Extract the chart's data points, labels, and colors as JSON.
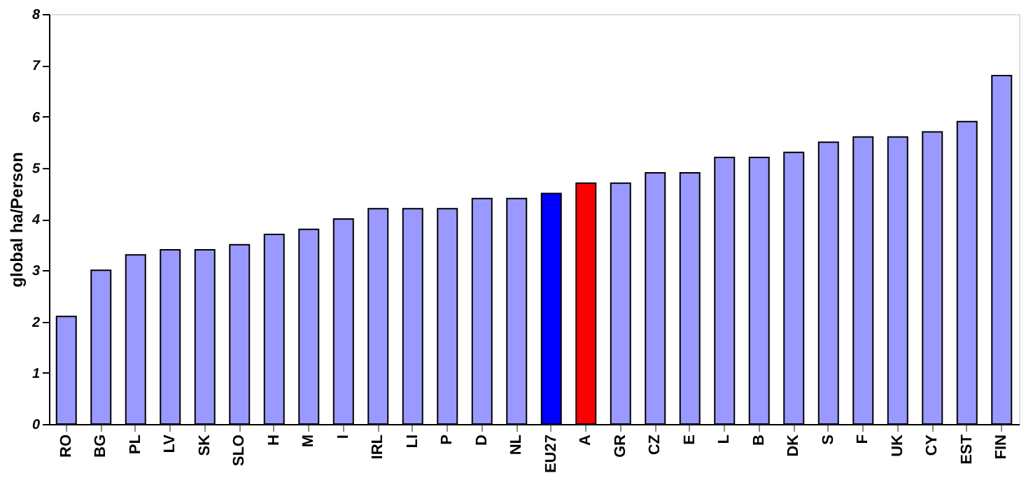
{
  "chart_data": {
    "type": "bar",
    "ylabel": "global ha/Person",
    "categories": [
      "RO",
      "BG",
      "PL",
      "LV",
      "SK",
      "SLO",
      "H",
      "M",
      "I",
      "IRL",
      "LI",
      "P",
      "D",
      "NL",
      "EU27",
      "A",
      "GR",
      "CZ",
      "E",
      "L",
      "B",
      "DK",
      "S",
      "F",
      "UK",
      "CY",
      "EST",
      "FIN"
    ],
    "values": [
      2.1,
      3.0,
      3.3,
      3.4,
      3.4,
      3.5,
      3.7,
      3.8,
      4.0,
      4.2,
      4.2,
      4.2,
      4.4,
      4.4,
      4.5,
      4.7,
      4.7,
      4.9,
      4.9,
      5.2,
      5.2,
      5.3,
      5.5,
      5.6,
      5.6,
      5.7,
      5.9,
      6.8
    ],
    "colors": [
      "#9999ff",
      "#9999ff",
      "#9999ff",
      "#9999ff",
      "#9999ff",
      "#9999ff",
      "#9999ff",
      "#9999ff",
      "#9999ff",
      "#9999ff",
      "#9999ff",
      "#9999ff",
      "#9999ff",
      "#9999ff",
      "#0000ff",
      "#ff0000",
      "#9999ff",
      "#9999ff",
      "#9999ff",
      "#9999ff",
      "#9999ff",
      "#9999ff",
      "#9999ff",
      "#9999ff",
      "#9999ff",
      "#9999ff",
      "#9999ff",
      "#9999ff"
    ],
    "ylim": [
      0,
      8
    ],
    "yticks": [
      0,
      1,
      2,
      3,
      4,
      5,
      6,
      7,
      8
    ],
    "grid": false
  }
}
